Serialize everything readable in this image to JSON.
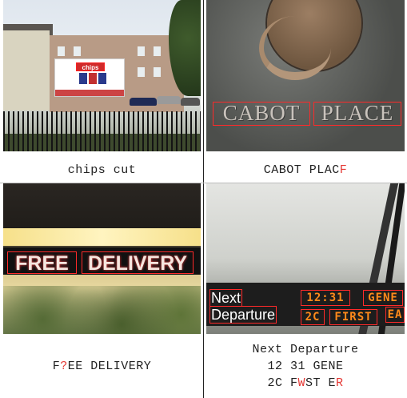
{
  "panels": [
    {
      "scene_text": [
        "chips cut"
      ],
      "caption_parts": [
        {
          "text": "chips cut",
          "error": false
        }
      ]
    },
    {
      "scene_text": [
        "CABOT",
        "PLACE"
      ],
      "caption_parts": [
        {
          "text": "CABOT PLAC",
          "error": false
        },
        {
          "text": "F",
          "error": true
        }
      ]
    },
    {
      "scene_text": [
        "FREE",
        "DELIVERY"
      ],
      "caption_parts": [
        {
          "text": "F",
          "error": false
        },
        {
          "text": "?",
          "error": true
        },
        {
          "text": "EE DELIVERY",
          "error": false
        }
      ]
    },
    {
      "scene_text": [
        "Next",
        "Departure",
        "12:31",
        "GENE",
        "2C",
        "FIRST",
        "EA"
      ],
      "caption_lines": [
        [
          {
            "text": "Next Departure",
            "error": false
          }
        ],
        [
          {
            "text": "12 31 GENE",
            "error": false
          }
        ],
        [
          {
            "text": "2C F",
            "error": false
          },
          {
            "text": "W",
            "error": true
          },
          {
            "text": "ST E",
            "error": false
          },
          {
            "text": "R",
            "error": true
          }
        ]
      ]
    }
  ],
  "colors": {
    "error_text": "#e53935",
    "detection_box": "#ff2a2a",
    "led_text": "#ff8a1a"
  }
}
